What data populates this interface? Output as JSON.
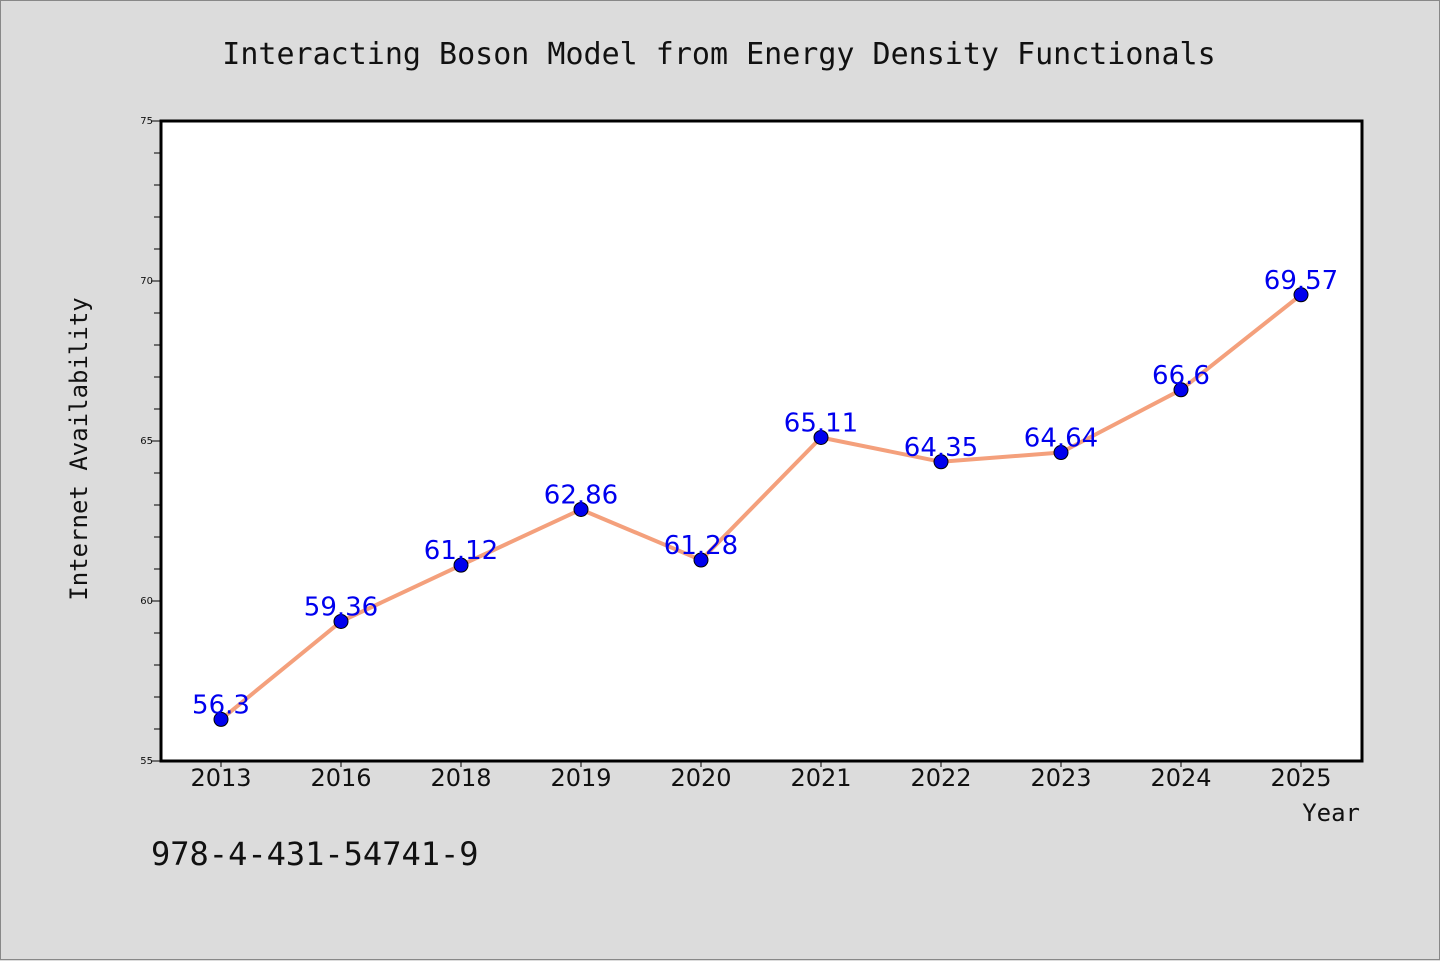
{
  "chart_data": {
    "type": "line",
    "title": "Interacting Boson Model from Energy Density Functionals",
    "xlabel": "Year",
    "ylabel": "Internet Availability",
    "categories": [
      "2013",
      "2016",
      "2018",
      "2019",
      "2020",
      "2021",
      "2022",
      "2023",
      "2024",
      "2025"
    ],
    "series": [
      {
        "values": [
          56.3,
          59.36,
          61.12,
          62.86,
          61.28,
          65.11,
          64.35,
          64.64,
          66.6,
          69.57
        ],
        "data_labels": [
          "56.3",
          "59.36",
          "61.12",
          "62.86",
          "61.28",
          "65.11",
          "64.35",
          "64.64",
          "66.6",
          "69.57"
        ]
      }
    ],
    "ylim": [
      55,
      75
    ],
    "yticks": [
      55,
      60,
      65,
      70,
      75
    ],
    "grid": false,
    "legend": "none",
    "colors": {
      "line": "#f4a07c",
      "marker": "#0000ee",
      "data_label": "#0000ee",
      "plot_bg": "#ffffff",
      "page_bg": "#dcdcdc"
    }
  },
  "footer": {
    "isbn": "978-4-431-54741-9"
  }
}
